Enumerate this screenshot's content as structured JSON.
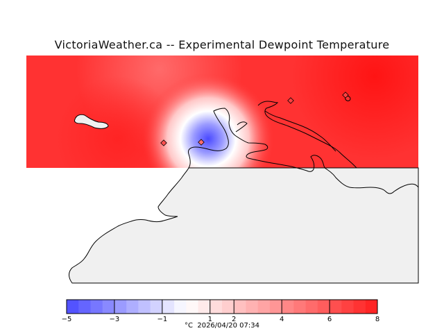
{
  "title": "VictoriaWeather.ca -- Experimental Dewpoint Temperature",
  "colorbar": {
    "unit": "°C",
    "timestamp": "2026/04/20 07:34",
    "min": -5,
    "max": 8,
    "ticks": [
      -5,
      -3,
      -1,
      1,
      2,
      4,
      6,
      8
    ],
    "tick_labels": [
      "−5",
      "−3",
      "−1",
      "1",
      "2",
      "4",
      "6",
      "8"
    ],
    "low_color": "#4a4aff",
    "mid_color": "#ffffff",
    "high_color": "#ff1e1e"
  },
  "map": {
    "field_color": "#ff3232",
    "land_color": "#f0f0f0",
    "cold_spot_value": -4,
    "stations": [
      "station-west",
      "station-center",
      "station-north",
      "station-east"
    ]
  }
}
